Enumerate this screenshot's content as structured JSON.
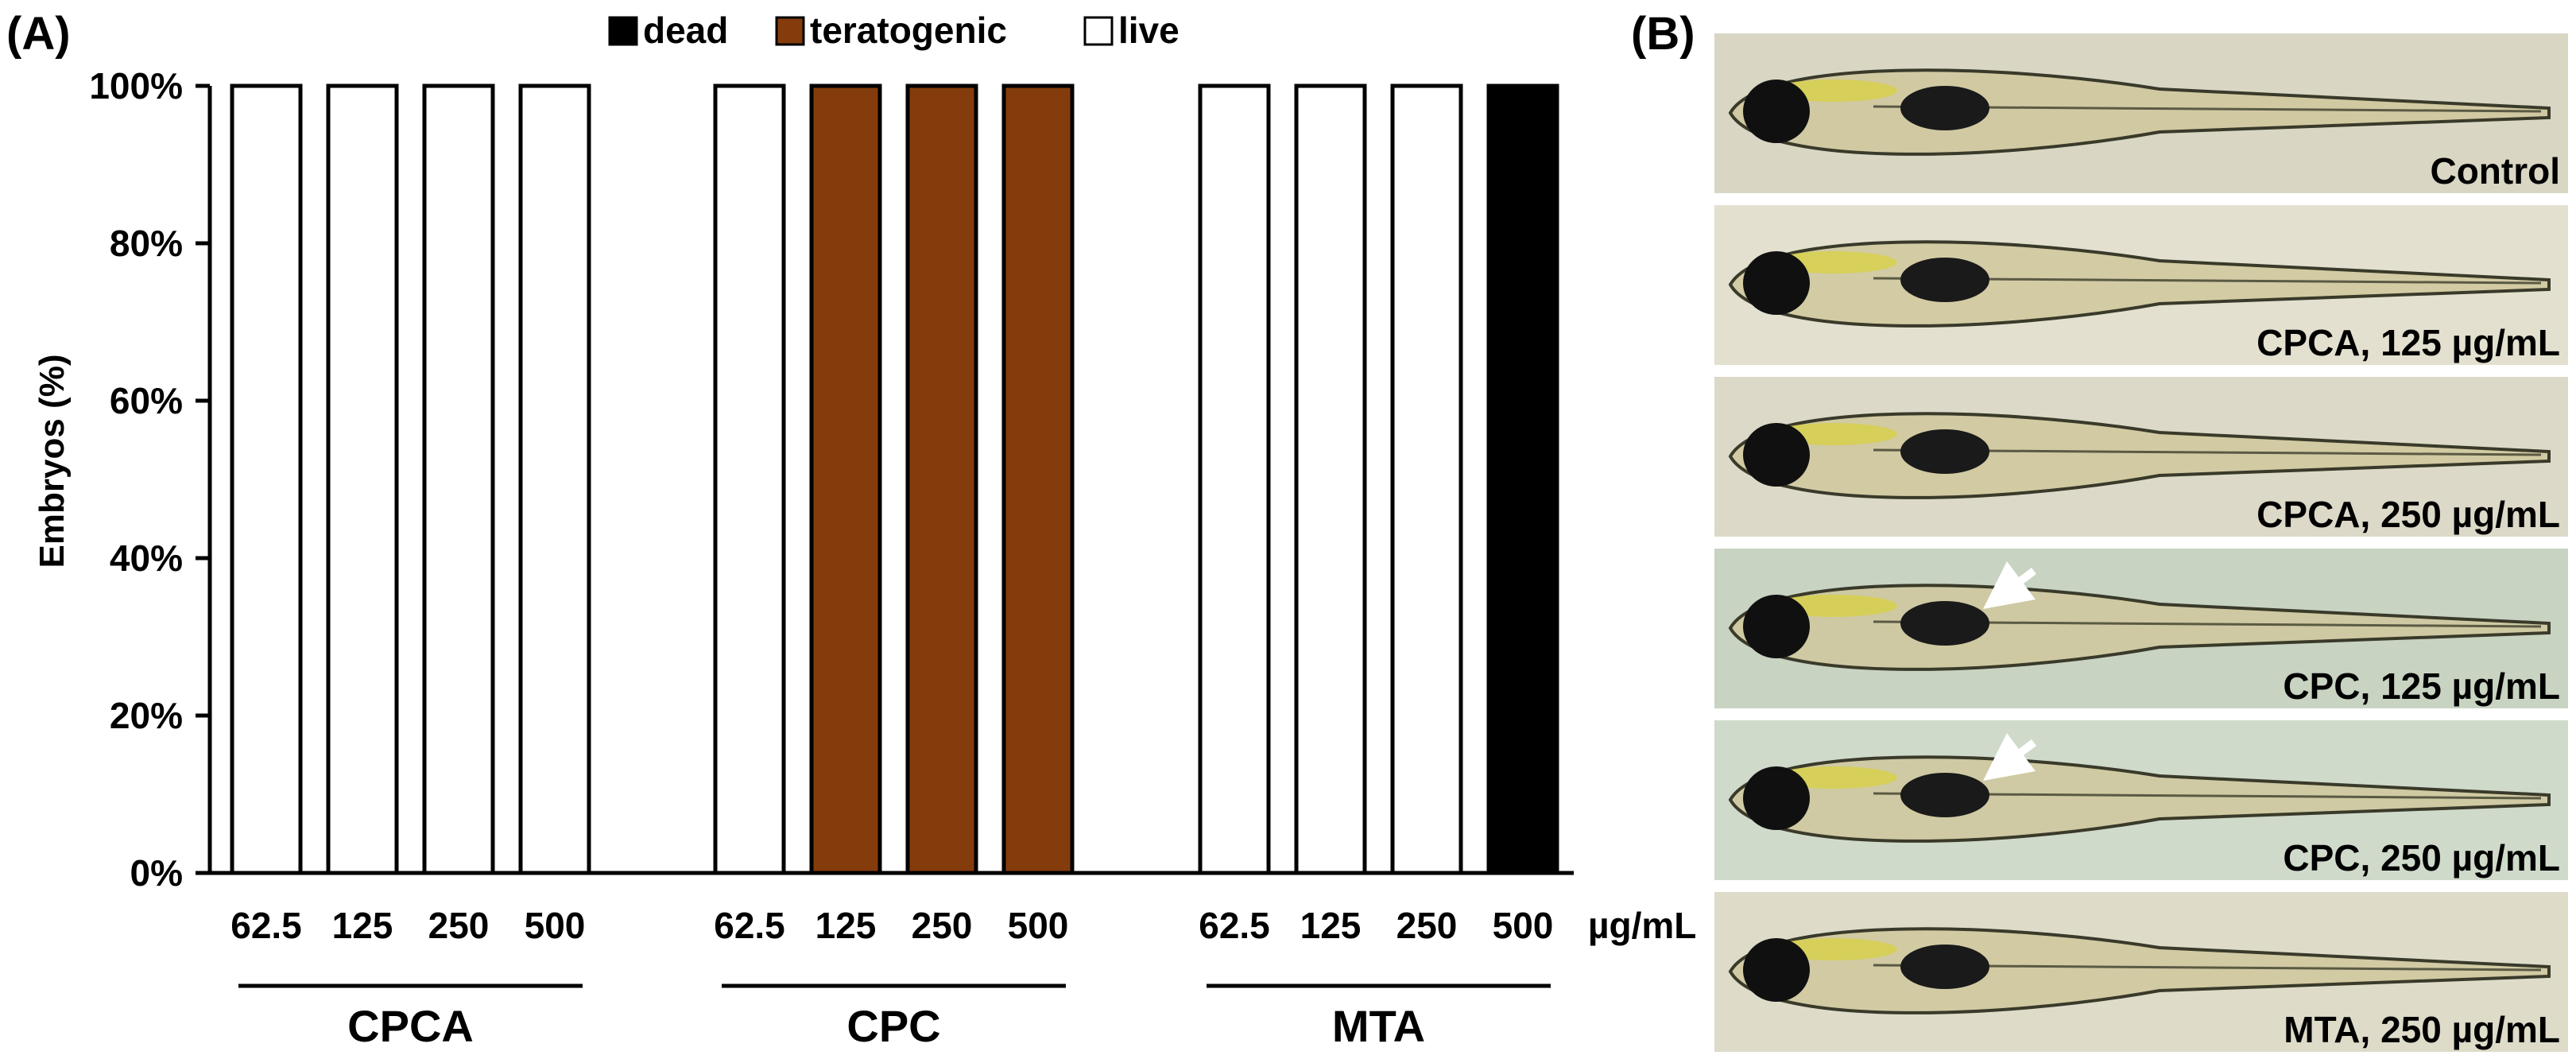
{
  "panel_a_label": "(A)",
  "panel_b_label": "(B)",
  "unit_label": "µg/mL",
  "legend": [
    {
      "label": "dead",
      "color": "#000000"
    },
    {
      "label": "teratogenic",
      "color": "#843C0C"
    },
    {
      "label": "live",
      "color": "#FFFFFF"
    }
  ],
  "chart_data": {
    "type": "bar",
    "title": "",
    "xlabel": "µg/mL",
    "ylabel": "Embryos (%)",
    "ylim": [
      0,
      100
    ],
    "y_ticks": [
      "0%",
      "20%",
      "40%",
      "60%",
      "80%",
      "100%"
    ],
    "grid": false,
    "legend_position": "top",
    "groups": [
      {
        "name": "CPCA",
        "categories": [
          "62.5",
          "125",
          "250",
          "500"
        ],
        "bars": [
          {
            "status": "live",
            "value": 100
          },
          {
            "status": "live",
            "value": 100
          },
          {
            "status": "live",
            "value": 100
          },
          {
            "status": "live",
            "value": 100
          }
        ]
      },
      {
        "name": "CPC",
        "categories": [
          "62.5",
          "125",
          "250",
          "500"
        ],
        "bars": [
          {
            "status": "live",
            "value": 100
          },
          {
            "status": "teratogenic",
            "value": 100
          },
          {
            "status": "teratogenic",
            "value": 100
          },
          {
            "status": "teratogenic",
            "value": 100
          }
        ]
      },
      {
        "name": "MTA",
        "categories": [
          "62.5",
          "125",
          "250",
          "500"
        ],
        "bars": [
          {
            "status": "live",
            "value": 100
          },
          {
            "status": "live",
            "value": 100
          },
          {
            "status": "live",
            "value": 100
          },
          {
            "status": "dead",
            "value": 100
          }
        ]
      }
    ]
  },
  "photos": [
    {
      "label": "Control",
      "bg": "#d9d6c4"
    },
    {
      "label": "CPCA, 125 µg/mL",
      "bg": "#e3e0d0"
    },
    {
      "label": "CPCA, 250 µg/mL",
      "bg": "#ddd9c8"
    },
    {
      "label": "CPC, 125 µg/mL",
      "bg": "#c8d3c2",
      "arrow": true
    },
    {
      "label": "CPC, 250 µg/mL",
      "bg": "#cfdacb",
      "arrow": true
    },
    {
      "label": "MTA, 250 µg/mL",
      "bg": "#dedbc9"
    }
  ]
}
